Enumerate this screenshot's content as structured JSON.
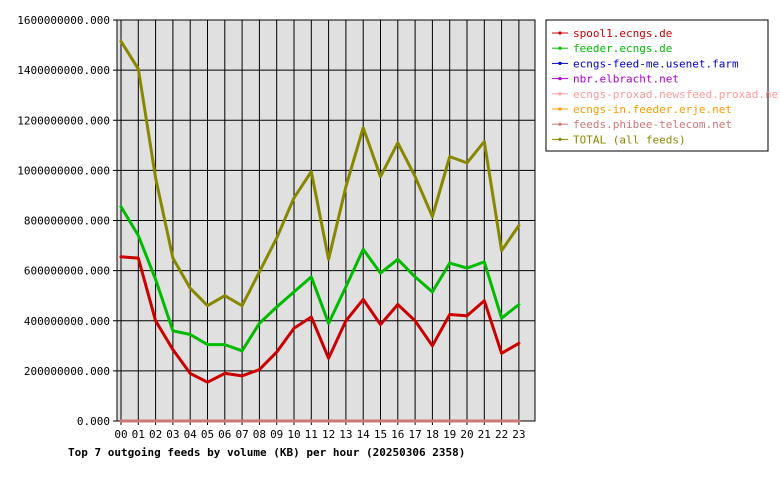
{
  "chart_data": {
    "type": "line",
    "title": "Top 7 outgoing feeds by volume (KB) per hour (20250306 2358)",
    "xlabel": "",
    "ylabel": "",
    "ylim": [
      0,
      1600000000
    ],
    "y_ticks": [
      "0.000",
      "200000000.000",
      "400000000.000",
      "600000000.000",
      "800000000.000",
      "1000000000.000",
      "1200000000.000",
      "1400000000.000",
      "1600000000.000"
    ],
    "y_tick_values": [
      0,
      200000000,
      400000000,
      600000000,
      800000000,
      1000000000,
      1200000000,
      1400000000,
      1600000000
    ],
    "grid": true,
    "legend_position": "right",
    "categories": [
      "00",
      "01",
      "02",
      "03",
      "04",
      "05",
      "06",
      "07",
      "08",
      "09",
      "10",
      "11",
      "12",
      "13",
      "14",
      "15",
      "16",
      "17",
      "18",
      "19",
      "20",
      "21",
      "22",
      "23"
    ],
    "series": [
      {
        "name": "spool1.ecngs.de",
        "color": "#cc0000",
        "values": [
          655000000,
          650000000,
          400000000,
          285000000,
          190000000,
          155000000,
          190000000,
          180000000,
          205000000,
          275000000,
          370000000,
          415000000,
          250000000,
          400000000,
          485000000,
          385000000,
          465000000,
          400000000,
          300000000,
          425000000,
          420000000,
          480000000,
          270000000,
          310000000
        ]
      },
      {
        "name": "feeder.ecngs.de",
        "color": "#00bb00",
        "values": [
          855000000,
          740000000,
          565000000,
          360000000,
          345000000,
          305000000,
          305000000,
          280000000,
          390000000,
          455000000,
          515000000,
          575000000,
          390000000,
          535000000,
          685000000,
          590000000,
          645000000,
          575000000,
          515000000,
          630000000,
          610000000,
          635000000,
          410000000,
          465000000
        ]
      },
      {
        "name": "ecngs-feed-me.usenet.farm",
        "color": "#0000cc",
        "values": [
          0,
          0,
          0,
          0,
          0,
          0,
          0,
          0,
          0,
          0,
          0,
          0,
          0,
          0,
          0,
          0,
          0,
          0,
          0,
          0,
          0,
          0,
          0,
          0
        ]
      },
      {
        "name": "nbr.elbracht.net",
        "color": "#aa00cc",
        "values": [
          0,
          0,
          0,
          0,
          0,
          0,
          0,
          0,
          0,
          0,
          0,
          0,
          0,
          0,
          0,
          0,
          0,
          0,
          0,
          0,
          0,
          0,
          0,
          0
        ]
      },
      {
        "name": "ecngs-proxad.newsfeed.proxad.net",
        "color": "#ff9999",
        "values": [
          0,
          0,
          0,
          0,
          0,
          0,
          0,
          0,
          0,
          0,
          0,
          0,
          0,
          0,
          0,
          0,
          0,
          0,
          0,
          0,
          0,
          0,
          0,
          0
        ]
      },
      {
        "name": "ecngs-in.feeder.erje.net",
        "color": "#ff9900",
        "values": [
          0,
          0,
          0,
          0,
          0,
          0,
          0,
          0,
          0,
          0,
          0,
          0,
          0,
          0,
          0,
          0,
          0,
          0,
          0,
          0,
          0,
          0,
          0,
          0
        ]
      },
      {
        "name": "feeds.phibee-telecom.net",
        "color": "#cc7777",
        "values": [
          0,
          0,
          0,
          0,
          0,
          0,
          0,
          0,
          0,
          0,
          0,
          0,
          0,
          0,
          0,
          0,
          0,
          0,
          0,
          0,
          0,
          0,
          0,
          0
        ]
      },
      {
        "name": "TOTAL (all feeds)",
        "color": "#888800",
        "values": [
          1515000000,
          1405000000,
          970000000,
          650000000,
          530000000,
          460000000,
          500000000,
          460000000,
          595000000,
          730000000,
          890000000,
          995000000,
          645000000,
          935000000,
          1170000000,
          975000000,
          1110000000,
          975000000,
          815000000,
          1055000000,
          1030000000,
          1115000000,
          680000000,
          780000000
        ]
      }
    ]
  }
}
